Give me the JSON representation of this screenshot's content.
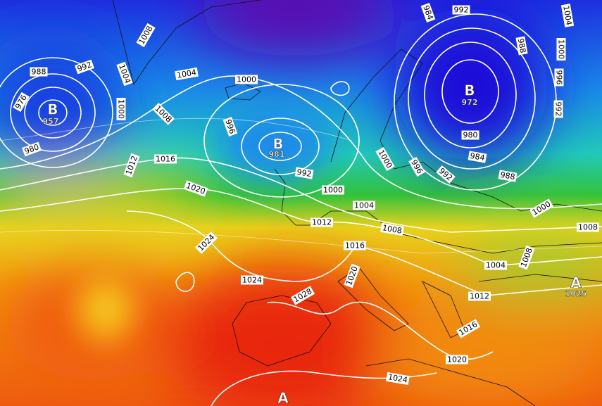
{
  "centers": [
    {
      "letter": "B",
      "value": 957
    },
    {
      "letter": "B",
      "value": 981
    },
    {
      "letter": "B",
      "value": 972
    },
    {
      "letter": "A",
      "value": 1025
    },
    {
      "letter": "A"
    }
  ],
  "isobar_labels": [
    988,
    992,
    976,
    980,
    1000,
    1008,
    1004,
    1004,
    1000,
    1008,
    996,
    992,
    1016,
    1012,
    1020,
    1000,
    1004,
    1012,
    1008,
    1016,
    1024,
    1024,
    1028,
    1020,
    1000,
    996,
    992,
    988,
    984,
    980,
    984,
    992,
    988,
    1004,
    1000,
    996,
    992,
    1000,
    1008,
    1004,
    1008,
    1012,
    1016,
    1020,
    1024
  ]
}
